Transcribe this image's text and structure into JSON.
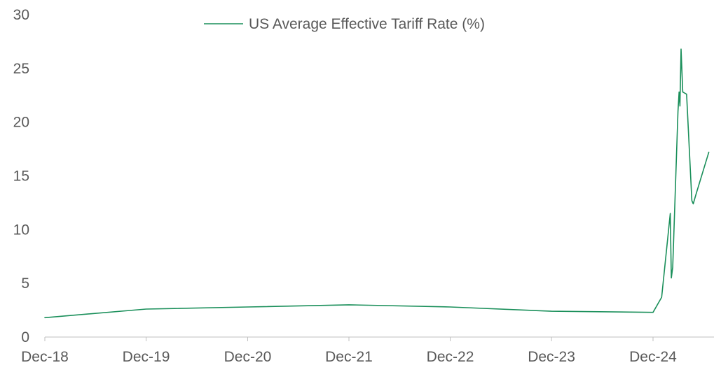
{
  "chart_data": {
    "type": "line",
    "title": "",
    "xlabel": "",
    "ylabel": "",
    "ylim": [
      0,
      30
    ],
    "yticks": [
      "0",
      "5",
      "10",
      "15",
      "20",
      "25",
      "30"
    ],
    "x_tick_labels": [
      "Dec-18",
      "Dec-19",
      "Dec-20",
      "Dec-21",
      "Dec-22",
      "Dec-23",
      "Dec-24"
    ],
    "grid": false,
    "legend_position": "top-center",
    "series": [
      {
        "name": "US Average Effective Tariff Rate (%)",
        "color": "#1a8f5a",
        "points": [
          {
            "x": "2018-12-01",
            "y": 1.8
          },
          {
            "x": "2019-12-01",
            "y": 2.6
          },
          {
            "x": "2020-12-01",
            "y": 2.8
          },
          {
            "x": "2021-12-01",
            "y": 3.0
          },
          {
            "x": "2022-12-01",
            "y": 2.8
          },
          {
            "x": "2023-12-01",
            "y": 2.4
          },
          {
            "x": "2024-12-01",
            "y": 2.3
          },
          {
            "x": "2025-01-01",
            "y": 3.7
          },
          {
            "x": "2025-02-01",
            "y": 11.5
          },
          {
            "x": "2025-02-05",
            "y": 5.5
          },
          {
            "x": "2025-02-10",
            "y": 6.5
          },
          {
            "x": "2025-03-01",
            "y": 21.0
          },
          {
            "x": "2025-03-05",
            "y": 22.8
          },
          {
            "x": "2025-03-08",
            "y": 21.5
          },
          {
            "x": "2025-03-12",
            "y": 26.8
          },
          {
            "x": "2025-03-18",
            "y": 22.8
          },
          {
            "x": "2025-04-01",
            "y": 22.6
          },
          {
            "x": "2025-04-20",
            "y": 12.7
          },
          {
            "x": "2025-04-25",
            "y": 12.4
          },
          {
            "x": "2025-05-05",
            "y": 13.3
          },
          {
            "x": "2025-06-20",
            "y": 17.2
          }
        ]
      }
    ]
  }
}
